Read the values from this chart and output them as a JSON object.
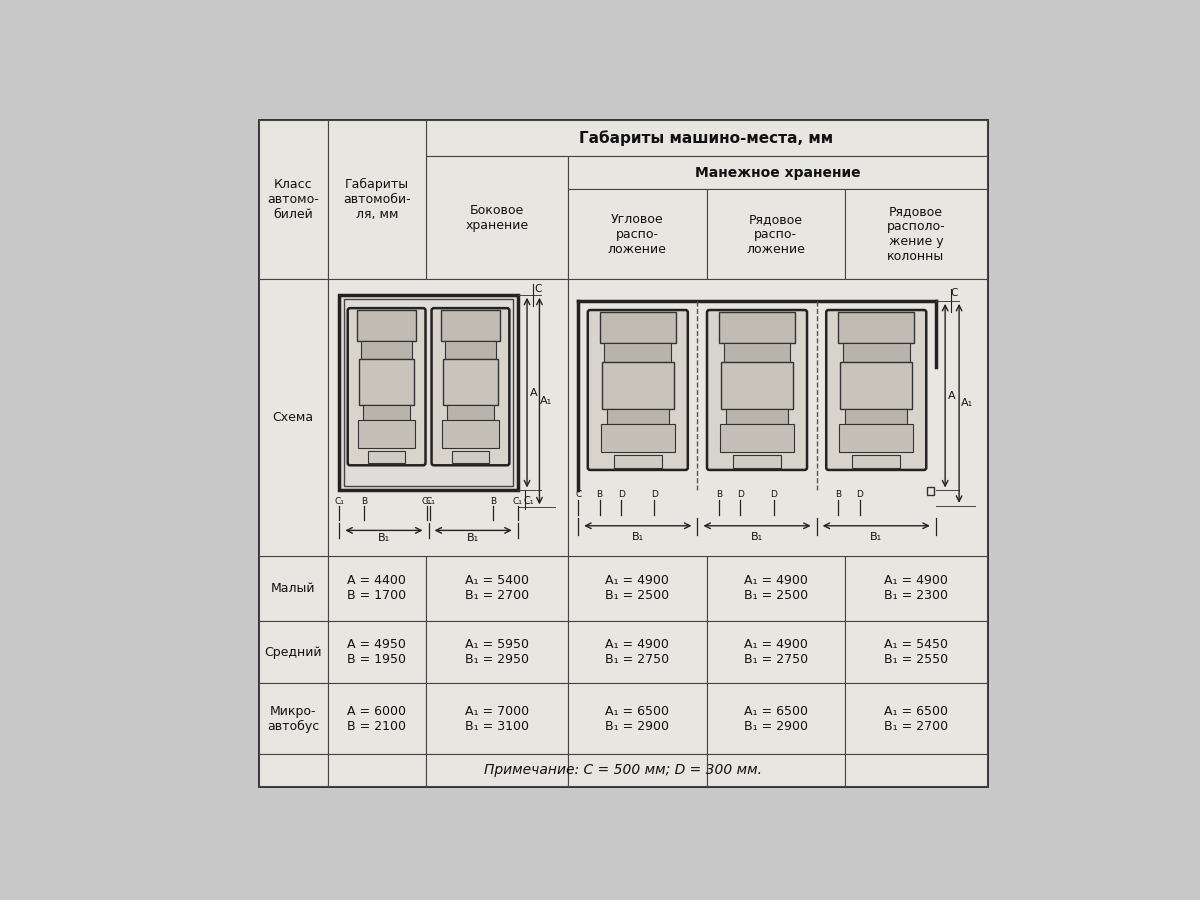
{
  "title": "Габариты машино-места, мм",
  "subtitle": "Манежное хранение",
  "bg_color": "#c8c8c8",
  "cell_bg": "#e8e6e0",
  "title_fontsize": 11,
  "header_fontsize": 9,
  "data_fontsize": 9,
  "note_fontsize": 10,
  "col0_header": "Класс\nавтомо-\nбилей",
  "col1_header": "Габариты\nавтомоби-\nля, мм",
  "col2_header": "Боковое\nхранение",
  "col3_header": "Угловое\nраспо-\nложение",
  "col4_header": "Рядовое\nраспо-\nложение",
  "col5_header": "Рядовое\nрасполо-\nжение у\nколонны",
  "schema_label": "Схема",
  "data_rows": [
    [
      "Малый",
      "A = 4400\nB = 1700",
      "A₁ = 5400\nB₁ = 2700",
      "A₁ = 4900\nB₁ = 2500",
      "A₁ = 4900\nB₁ = 2300"
    ],
    [
      "Средний",
      "A = 4950\nB = 1950",
      "A₁ = 5950\nB₁ = 2950",
      "A₁ = 4900\nB₁ = 2750",
      "A₁ = 5450\nB₁ = 2550"
    ],
    [
      "Микро-\nавтобус",
      "A = 6000\nB = 2100",
      "A₁ = 7000\nB₁ = 3100",
      "A₁ = 6500\nB₁ = 2900",
      "A₁ = 6500\nB₁ = 2700"
    ]
  ],
  "note": "Примечание: C = 500 мм; D = 300 мм."
}
